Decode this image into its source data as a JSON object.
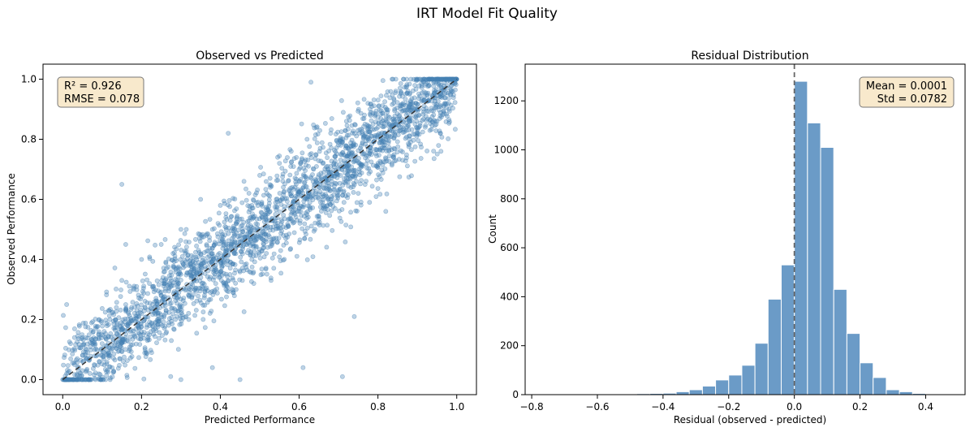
{
  "figure": {
    "suptitle": "IRT Model Fit Quality"
  },
  "chart_data": [
    {
      "type": "scatter",
      "title": "Observed vs Predicted",
      "xlabel": "Predicted Performance",
      "ylabel": "Observed Performance",
      "xlim": [
        -0.05,
        1.05
      ],
      "ylim": [
        -0.05,
        1.05
      ],
      "xticks": [
        0.0,
        0.2,
        0.4,
        0.6,
        0.8,
        1.0
      ],
      "yticks": [
        0.0,
        0.2,
        0.4,
        0.6,
        0.8,
        1.0
      ],
      "grid": false,
      "point_color": "#4682b4",
      "point_count": 5000,
      "series": [
        {
          "points": [
            [
              0.0,
              0.0
            ],
            [
              0.01,
              0.02
            ],
            [
              0.02,
              0.0
            ],
            [
              0.03,
              0.05
            ],
            [
              0.02,
              0.12
            ],
            [
              0.01,
              0.25
            ],
            [
              0.03,
              0.14
            ],
            [
              0.05,
              0.03
            ],
            [
              0.06,
              0.1
            ],
            [
              0.08,
              0.05
            ],
            [
              0.1,
              0.12
            ],
            [
              0.12,
              0.08
            ],
            [
              0.12,
              0.2
            ],
            [
              0.14,
              0.12
            ],
            [
              0.15,
              0.65
            ],
            [
              0.16,
              0.25
            ],
            [
              0.18,
              0.15
            ],
            [
              0.18,
              0.3
            ],
            [
              0.2,
              0.22
            ],
            [
              0.2,
              0.4
            ],
            [
              0.22,
              0.18
            ],
            [
              0.22,
              0.32
            ],
            [
              0.24,
              0.25
            ],
            [
              0.25,
              0.45
            ],
            [
              0.26,
              0.32
            ],
            [
              0.28,
              0.22
            ],
            [
              0.28,
              0.42
            ],
            [
              0.3,
              0.3
            ],
            [
              0.3,
              0.5
            ],
            [
              0.32,
              0.2
            ],
            [
              0.32,
              0.38
            ],
            [
              0.34,
              0.35
            ],
            [
              0.35,
              0.6
            ],
            [
              0.36,
              0.28
            ],
            [
              0.38,
              0.42
            ],
            [
              0.38,
              0.5
            ],
            [
              0.4,
              0.36
            ],
            [
              0.4,
              0.58
            ],
            [
              0.42,
              0.45
            ],
            [
              0.44,
              0.3
            ],
            [
              0.44,
              0.52
            ],
            [
              0.46,
              0.46
            ],
            [
              0.46,
              0.66
            ],
            [
              0.48,
              0.4
            ],
            [
              0.48,
              0.58
            ],
            [
              0.5,
              0.5
            ],
            [
              0.5,
              0.68
            ],
            [
              0.52,
              0.44
            ],
            [
              0.52,
              0.57
            ],
            [
              0.54,
              0.52
            ],
            [
              0.55,
              0.72
            ],
            [
              0.56,
              0.48
            ],
            [
              0.58,
              0.62
            ],
            [
              0.58,
              0.76
            ],
            [
              0.6,
              0.56
            ],
            [
              0.6,
              0.7
            ],
            [
              0.62,
              0.6
            ],
            [
              0.62,
              0.8
            ],
            [
              0.64,
              0.5
            ],
            [
              0.65,
              0.64
            ],
            [
              0.66,
              0.72
            ],
            [
              0.68,
              0.6
            ],
            [
              0.68,
              0.82
            ],
            [
              0.7,
              0.7
            ],
            [
              0.72,
              0.66
            ],
            [
              0.72,
              0.86
            ],
            [
              0.74,
              0.74
            ],
            [
              0.75,
              0.62
            ],
            [
              0.76,
              0.82
            ],
            [
              0.78,
              0.76
            ],
            [
              0.78,
              0.9
            ],
            [
              0.8,
              0.72
            ],
            [
              0.8,
              0.84
            ],
            [
              0.82,
              0.8
            ],
            [
              0.84,
              0.92
            ],
            [
              0.84,
              0.74
            ],
            [
              0.86,
              0.86
            ],
            [
              0.88,
              0.8
            ],
            [
              0.88,
              0.95
            ],
            [
              0.9,
              0.9
            ],
            [
              0.92,
              0.84
            ],
            [
              0.92,
              0.98
            ],
            [
              0.94,
              0.94
            ],
            [
              0.95,
              0.86
            ],
            [
              0.96,
              0.98
            ],
            [
              0.97,
              0.92
            ],
            [
              0.98,
              1.0
            ],
            [
              0.99,
              0.96
            ],
            [
              1.0,
              1.0
            ],
            [
              0.63,
              0.99
            ],
            [
              0.42,
              0.82
            ],
            [
              0.16,
              0.45
            ],
            [
              0.74,
              0.21
            ],
            [
              0.61,
              0.04
            ],
            [
              0.71,
              0.01
            ],
            [
              0.3,
              0.0
            ],
            [
              0.45,
              0.0
            ],
            [
              0.38,
              0.04
            ],
            [
              0.82,
              0.56
            ],
            [
              0.96,
              0.76
            ]
          ]
        }
      ],
      "reference_line": {
        "from": [
          0,
          0
        ],
        "to": [
          1,
          1
        ],
        "style": "dashed",
        "color": "#333333"
      },
      "annotation": {
        "line1": "R² = 0.926",
        "line2": "RMSE = 0.078",
        "position": "top-left"
      }
    },
    {
      "type": "bar",
      "subtype": "histogram",
      "title": "Residual Distribution",
      "xlabel": "Residual (observed - predicted)",
      "ylabel": "Count",
      "xlim": [
        -0.82,
        0.52
      ],
      "ylim": [
        0,
        1350
      ],
      "xticks": [
        -0.8,
        -0.6,
        -0.4,
        -0.2,
        0.0,
        0.2,
        0.4
      ],
      "xtick_labels": [
        "−0.8",
        "−0.6",
        "−0.4",
        "−0.2",
        "0.0",
        "0.2",
        "0.4"
      ],
      "yticks": [
        0,
        200,
        400,
        600,
        800,
        1000,
        1200
      ],
      "grid": false,
      "bar_color": "#6b9bc7",
      "bin_edges": [
        -0.84,
        -0.8,
        -0.76,
        -0.72,
        -0.68,
        -0.64,
        -0.6,
        -0.56,
        -0.52,
        -0.48,
        -0.44,
        -0.4,
        -0.36,
        -0.32,
        -0.28,
        -0.24,
        -0.2,
        -0.16,
        -0.12,
        -0.08,
        -0.04,
        0.0,
        0.04,
        0.08,
        0.12,
        0.16,
        0.2,
        0.24,
        0.28,
        0.32,
        0.36,
        0.4,
        0.44,
        0.48
      ],
      "values": [
        1,
        1,
        1,
        1,
        2,
        1,
        2,
        2,
        3,
        4,
        5,
        6,
        12,
        20,
        35,
        60,
        80,
        120,
        210,
        390,
        530,
        1280,
        1110,
        1010,
        430,
        250,
        130,
        70,
        20,
        12,
        5,
        2,
        1
      ],
      "reference_line": {
        "x": 0.0,
        "style": "dashed",
        "color": "#666666"
      },
      "annotation": {
        "line1": "Mean = 0.0001",
        "line2": "Std = 0.0782",
        "position": "top-right"
      }
    }
  ]
}
